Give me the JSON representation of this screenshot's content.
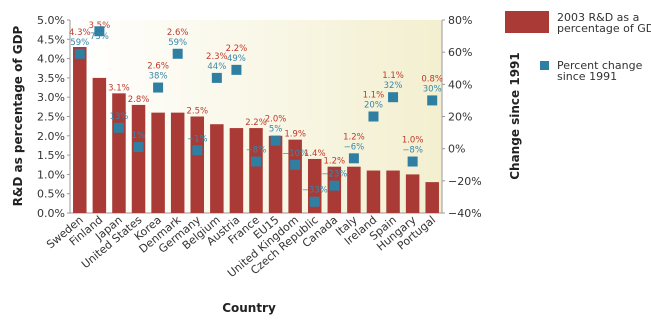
{
  "chart_data": {
    "type": "bar",
    "categories": [
      "Sweden",
      "Finland",
      "Japan",
      "United States",
      "Korea",
      "Denmark",
      "Germany",
      "Belgium",
      "Austria",
      "France",
      "EU15",
      "United Kingdom",
      "Czech Republic",
      "Canada",
      "Italy",
      "Ireland",
      "Spain",
      "Hungary",
      "Portugal"
    ],
    "series": [
      {
        "name": "2003 R&D as a percentage of GDP",
        "type": "bar",
        "axis": "left",
        "values": [
          4.3,
          3.5,
          3.1,
          2.8,
          2.6,
          2.6,
          2.5,
          2.3,
          2.2,
          2.2,
          2.0,
          1.9,
          1.4,
          1.2,
          1.2,
          1.1,
          1.1,
          1.0,
          0.8
        ],
        "value_labels": [
          "4.3%",
          "3.5%",
          "3.1%",
          "2.8%",
          "2.6%",
          "2.6%",
          "2.5%",
          "2.3%",
          "2.2%",
          "2.2%",
          "2.0%",
          "1.9%",
          "1.4%",
          "1.2%",
          "1.2%",
          "1.1%",
          "1.1%",
          "1.0%",
          "0.8%"
        ],
        "color": "#a93a35"
      },
      {
        "name": "Percent change since 1991",
        "type": "scatter",
        "axis": "right",
        "values": [
          59,
          73,
          13,
          1,
          38,
          59,
          -1,
          44,
          49,
          -8,
          5,
          -10,
          -33,
          -23,
          -6,
          20,
          32,
          -8,
          30
        ],
        "value_labels": [
          "59%",
          "73%",
          "13%",
          "1%",
          "38%",
          "59%",
          "−1%",
          "44%",
          "49%",
          "−8%",
          "5%",
          "−10%",
          "−33%",
          "−23%",
          "−6%",
          "20%",
          "32%",
          "−8%",
          "30%"
        ],
        "color": "#2f7fa3"
      }
    ],
    "xlabel": "Country",
    "ylabel": "R&D as percentage of GDP",
    "y2label": "Change since 1991",
    "ylim": [
      0,
      5
    ],
    "y_ticks": [
      "0.0%",
      "0.5%",
      "1.0%",
      "1.5%",
      "2.0%",
      "2.5%",
      "3.0%",
      "3.5%",
      "4.0%",
      "4.5%",
      "5.0%"
    ],
    "y2lim": [
      -40,
      80
    ],
    "y2_ticks": [
      "−40%",
      "−20%",
      "0%",
      "20%",
      "40%",
      "60%",
      "80%"
    ],
    "legend": [
      "2003 R&D as a percentage of GDP",
      "Percent change since 1991"
    ],
    "legend_placement": "right",
    "background_color": "#f5f2da"
  }
}
